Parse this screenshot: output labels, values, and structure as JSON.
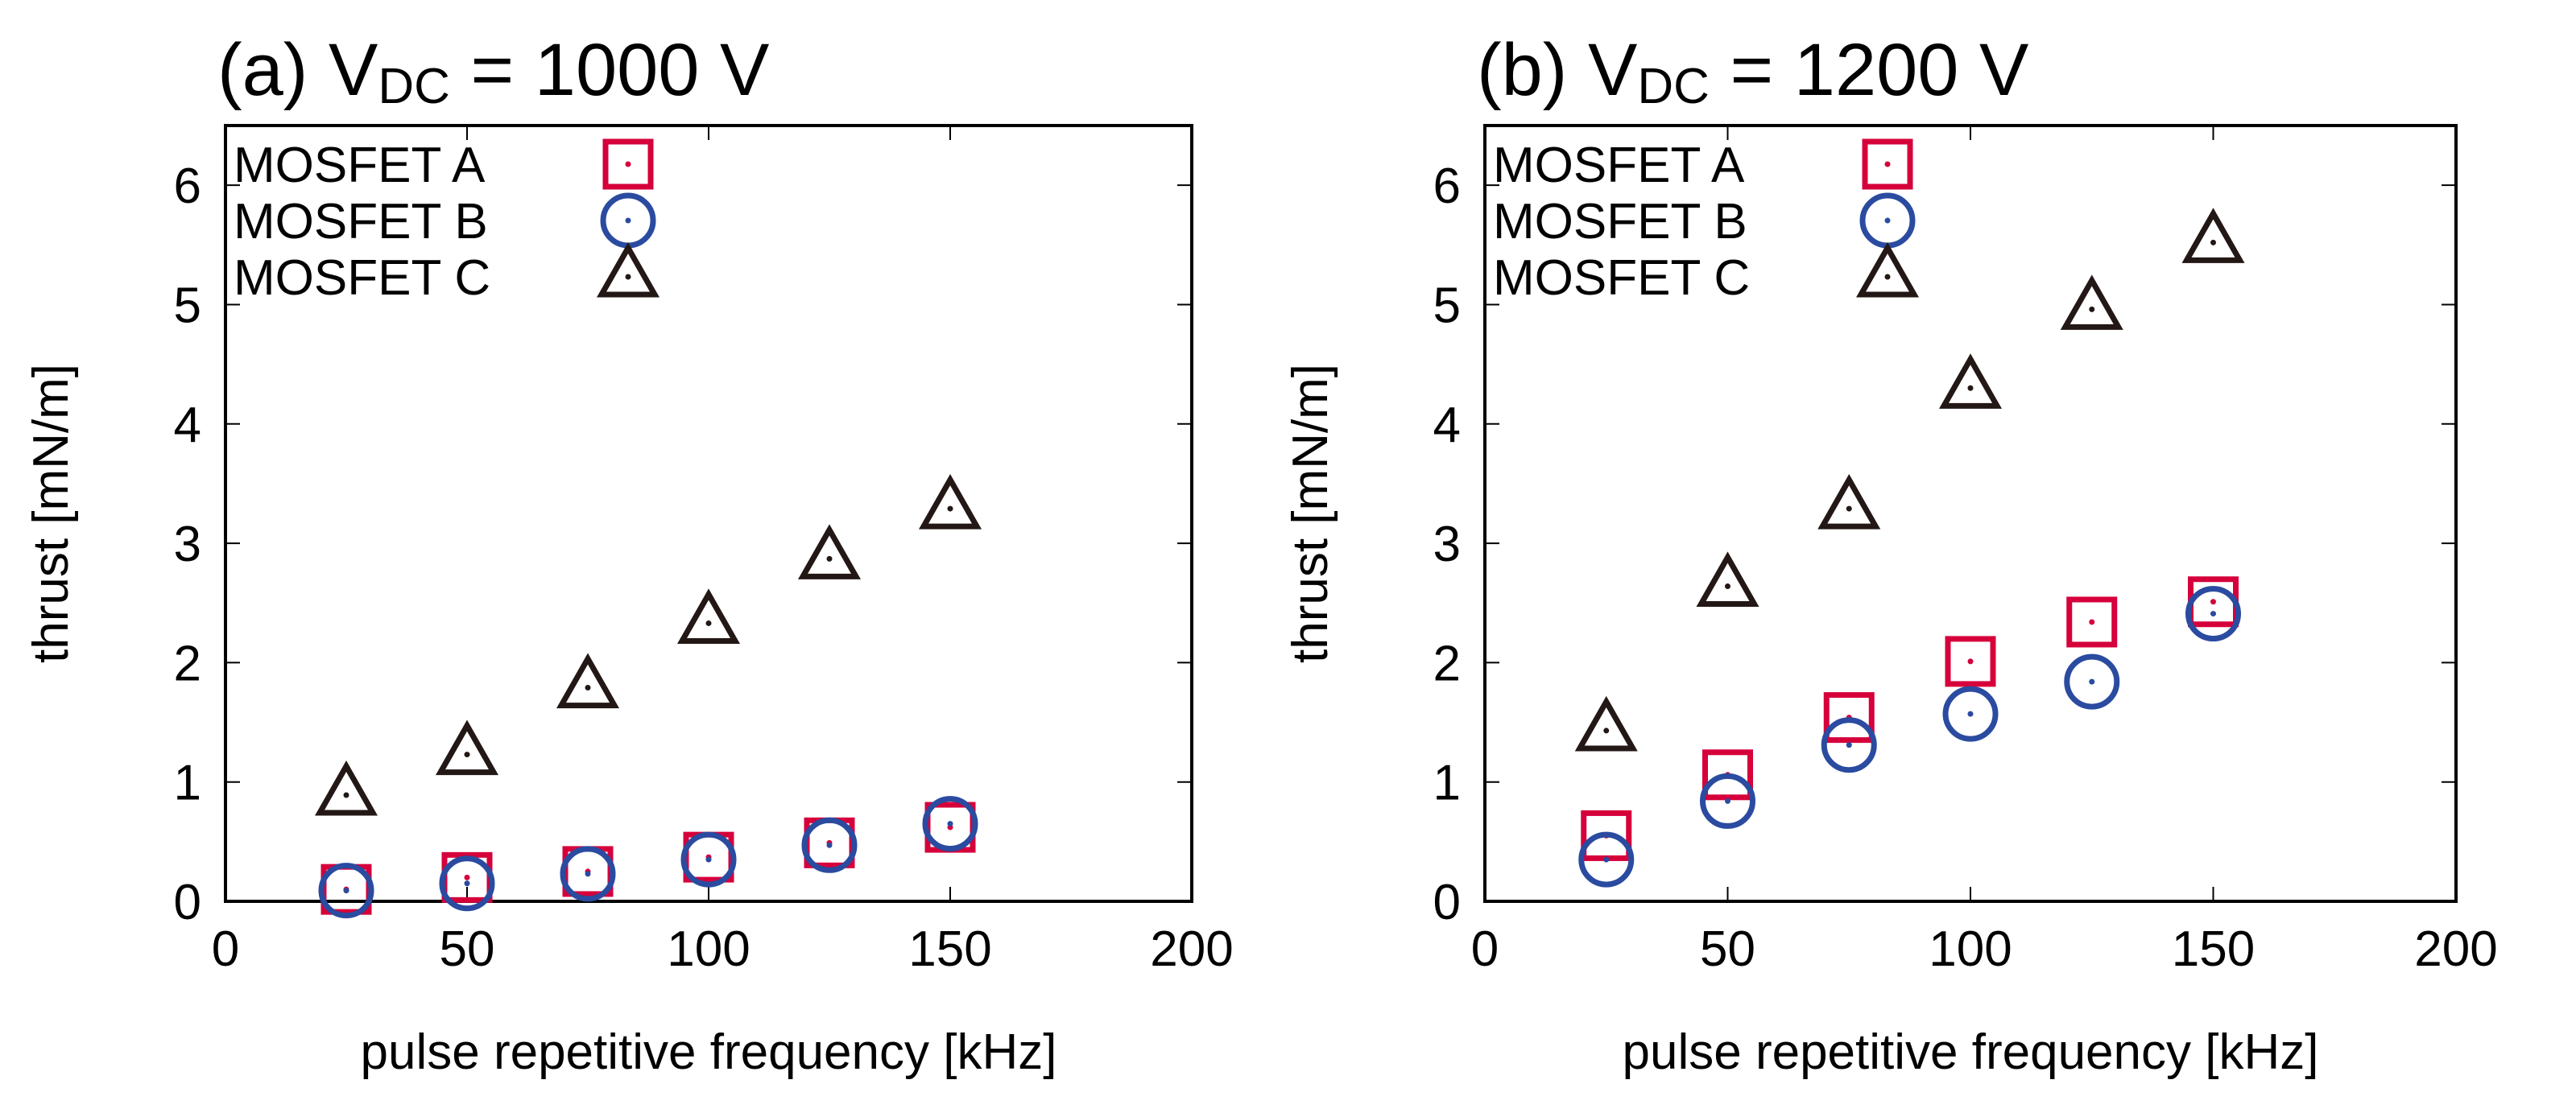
{
  "colors": {
    "A": "#d6003b",
    "B": "#2a4ba0",
    "C": "#231815"
  },
  "chart_data": [
    {
      "type": "scatter",
      "title_prefix": "(a) V",
      "title_sub": "DC",
      "title_suffix": " = 1000 V",
      "xlabel": "pulse repetitive frequency [kHz]",
      "ylabel": "thrust [mN/m]",
      "xlim": [
        0,
        200
      ],
      "ylim": [
        0,
        6.5
      ],
      "xticks": [
        0,
        50,
        100,
        150,
        200
      ],
      "yticks": [
        0,
        1,
        2,
        3,
        4,
        5,
        6
      ],
      "legend_position": "top-left",
      "x": [
        25,
        50,
        75,
        100,
        125,
        150
      ],
      "series": [
        {
          "name": "MOSFET A",
          "marker": "square",
          "values": [
            0.1,
            0.2,
            0.25,
            0.37,
            0.49,
            0.62
          ]
        },
        {
          "name": "MOSFET B",
          "marker": "circle",
          "values": [
            0.09,
            0.15,
            0.23,
            0.35,
            0.47,
            0.65
          ]
        },
        {
          "name": "MOSFET C",
          "marker": "triangle",
          "values": [
            0.89,
            1.23,
            1.79,
            2.33,
            2.87,
            3.29
          ]
        }
      ]
    },
    {
      "type": "scatter",
      "title_prefix": "(b) V",
      "title_sub": "DC",
      "title_suffix": " = 1200 V",
      "xlabel": "pulse repetitive frequency [kHz]",
      "ylabel": "thrust [mN/m]",
      "xlim": [
        0,
        200
      ],
      "ylim": [
        0,
        6.5
      ],
      "xticks": [
        0,
        50,
        100,
        150,
        200
      ],
      "yticks": [
        0,
        1,
        2,
        3,
        4,
        5,
        6
      ],
      "legend_position": "top-left",
      "x": [
        25,
        50,
        75,
        100,
        125,
        150
      ],
      "series": [
        {
          "name": "MOSFET A",
          "marker": "square",
          "values": [
            0.55,
            1.06,
            1.54,
            2.01,
            2.34,
            2.51
          ]
        },
        {
          "name": "MOSFET B",
          "marker": "circle",
          "values": [
            0.35,
            0.84,
            1.31,
            1.57,
            1.84,
            2.41
          ]
        },
        {
          "name": "MOSFET C",
          "marker": "triangle",
          "values": [
            1.43,
            2.64,
            3.29,
            4.3,
            4.96,
            5.52
          ]
        }
      ]
    }
  ]
}
